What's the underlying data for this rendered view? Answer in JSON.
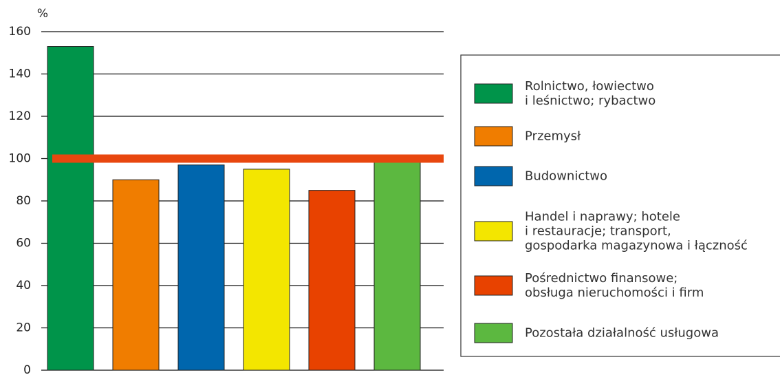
{
  "chart_data": {
    "type": "bar",
    "y_label": "%",
    "categories": [
      "Rolnictwo, łowiectwo\ni leśnictwo; rybactwo",
      "Przemysł",
      "Budownictwo",
      "Handel i naprawy; hotele\ni restauracje; transport,\ngospodarka magazynowa i łączność",
      "Pośrednictwo finansowe;\nobsługa nieruchomości i firm",
      "Pozostała działalność usługowa"
    ],
    "values": [
      153,
      90,
      97,
      95,
      85,
      100
    ],
    "colors": [
      "#00944a",
      "#f07d00",
      "#0066ad",
      "#f3e600",
      "#e84200",
      "#5cb840"
    ],
    "reference_line": {
      "value": 100,
      "color": "#e8470f"
    },
    "ylim": [
      0,
      160
    ],
    "yticks": [
      0,
      20,
      40,
      60,
      80,
      100,
      120,
      140,
      160
    ],
    "grid": true,
    "legend": "right"
  }
}
